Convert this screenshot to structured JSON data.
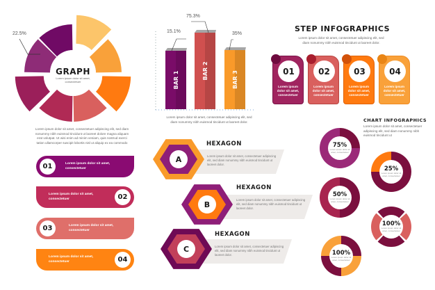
{
  "colors": {
    "purple": "#7a0c68",
    "magenta": "#9b2a78",
    "crimson": "#a8254f",
    "maroon": "#7b0f3e",
    "coral": "#d9605e",
    "orange": "#ff7a10",
    "light_orange": "#f9a13a",
    "yellow": "#fcc56a",
    "gray": "#eeebe9"
  },
  "graph": {
    "title": "GRAPH",
    "subtitle": "Lorem ipsum dolor sit amet, consectetuer",
    "callout": "22.5%",
    "segments": [
      {
        "color": "#fcc56a",
        "offset": true
      },
      {
        "color": "#f9a13a",
        "offset": false
      },
      {
        "color": "#ff7a10",
        "offset": true
      },
      {
        "color": "#d9605e",
        "offset": false
      },
      {
        "color": "#b02a55",
        "offset": false
      },
      {
        "color": "#9b1f5a",
        "offset": true
      },
      {
        "color": "#8e2c77",
        "offset": false
      },
      {
        "color": "#700a65",
        "offset": false
      }
    ],
    "description": "Lorem ipsum dolor sit amet, consectetuer adipiscing elit, sed diam nonummy nibh euismod tincidunt ut laoreet dolore magna aliquam erat volutpat. Ut wisi enim ad minim veniam, quis nostrud exerci tation ullamcorper suscipit lobortis nisl ut aliquip ex ea commodo"
  },
  "bars": {
    "items": [
      {
        "label": "BAR 1",
        "value": "15.1%",
        "color": "#7a0c68"
      },
      {
        "label": "BAR 2",
        "value": "75.3%",
        "color": "#d0504f"
      },
      {
        "label": "BAR 3",
        "value": "35%",
        "color": "#f99a2a"
      }
    ],
    "caption": "Lorem ipsum dolor sit amet, consectetuer adipiscing elit, sed diam nonummy nibh euismod tincidunt ut laoreet dolor."
  },
  "steps": {
    "title": "STEP INFOGRAPHICS",
    "subtitle": "Lorem ipsum dolor sit amet, consectetuer adipiscing elit, sed diam nonummy nibh euismod tincidunt ut laoreet dolor.",
    "cards": [
      {
        "number": "01",
        "text": "Lorem ipsum dolor sit amet, consectetuer",
        "color": "#a0245f",
        "dot": "#6e0a3e"
      },
      {
        "number": "02",
        "text": "Lorem ipsum dolor sit amet, consectetuer",
        "color": "#d9605e",
        "dot": "#a81e2e"
      },
      {
        "number": "03",
        "text": "Lorem ipsum dolor sit amet, consectetuer",
        "color": "#ff7a10",
        "dot": "#d2520a"
      },
      {
        "number": "04",
        "text": "Lorem ipsum dolor sit amet, consectetuer",
        "color": "#f9a13a",
        "dot": "#e98515"
      }
    ]
  },
  "list": {
    "items": [
      {
        "number": "01",
        "text": "Lorem ipsum dolor sit amet, consectetuer",
        "color": "#8a0b72"
      },
      {
        "number": "02",
        "text": "Lorem ipsum dolor sit amet, consectetuer",
        "color": "#c12d5a"
      },
      {
        "number": "03",
        "text": "Lorem ipsum dolor sit amet, consectetuer",
        "color": "#df6f6a"
      },
      {
        "number": "04",
        "text": "Lorem ipsum dolor sit amet, consectetuer",
        "color": "#ff8412"
      }
    ]
  },
  "hexagons": {
    "items": [
      {
        "letter": "A",
        "title": "HEXAGON",
        "text": "Lorem ipsum dolor sit amet, consectetuer adipiscing elit, sed diam nonummy nibh euismod tincidunt ut laoreet dolor.",
        "outer": "#f99a2a",
        "inner": "#8e1e78"
      },
      {
        "letter": "B",
        "title": "HEXAGON",
        "text": "Lorem ipsum dolor sit amet, consectetuer adipiscing elit, sed diam nonummy nibh euismod tincidunt ut laoreet dolor.",
        "outer": "#8e1e78",
        "inner": "#ff7a10"
      },
      {
        "letter": "C",
        "title": "HEXAGON",
        "text": "Lorem ipsum dolor sit amet, consectetuer adipiscing elit, sed diam nonummy nibh euismod tincidunt ut laoreet dolor.",
        "outer": "#6e0a55",
        "inner": "#c2405a"
      }
    ]
  },
  "charts": {
    "title": "CHART INFOGRAPHICS",
    "subtitle": "Lorem ipsum dolor sit amet, consectetuer adipiscing elit, sed diam nonummy nibh euismod tincidunt ut",
    "donuts": [
      {
        "label": "75%",
        "text": "Lorem ipsum dolor sit amet, consectetuer",
        "segments": [
          {
            "share": 0.25,
            "color": "#7b0f3e"
          },
          {
            "share": 0.75,
            "color": "#9b2a78"
          }
        ],
        "gap": false
      },
      {
        "label": "25%",
        "text": "Lorem ipsum dolor sit amet, consectetuer",
        "segments": [
          {
            "share": 0.75,
            "color": "#7b0f3e"
          },
          {
            "share": 0.25,
            "color": "#ff7a10"
          }
        ],
        "gap": false
      },
      {
        "label": "50%",
        "text": "Lorem ipsum dolor sit amet, consectetuer",
        "segments": [
          {
            "share": 0.5,
            "color": "#7b0f3e"
          },
          {
            "share": 0.5,
            "color": "#a8254f"
          }
        ],
        "gap": false
      },
      {
        "label": "100%",
        "text": "Lorem ipsum dolor sit amet, consectetuer",
        "segments": [
          {
            "share": 0.25,
            "color": "#7b0f3e"
          },
          {
            "share": 0.25,
            "color": "#d9605e"
          },
          {
            "share": 0.25,
            "color": "#7b0f3e"
          },
          {
            "share": 0.25,
            "color": "#d9605e"
          }
        ],
        "gap": true,
        "rotate": -45
      },
      {
        "label": "100%",
        "text": "Lorem ipsum dolor sit amet, consectetuer",
        "segments": [
          {
            "share": 0.25,
            "color": "#7b0f3e"
          },
          {
            "share": 0.25,
            "color": "#f9a13a"
          },
          {
            "share": 0.25,
            "color": "#7b0f3e"
          },
          {
            "share": 0.25,
            "color": "#f9a13a"
          }
        ],
        "gap": false
      }
    ]
  }
}
